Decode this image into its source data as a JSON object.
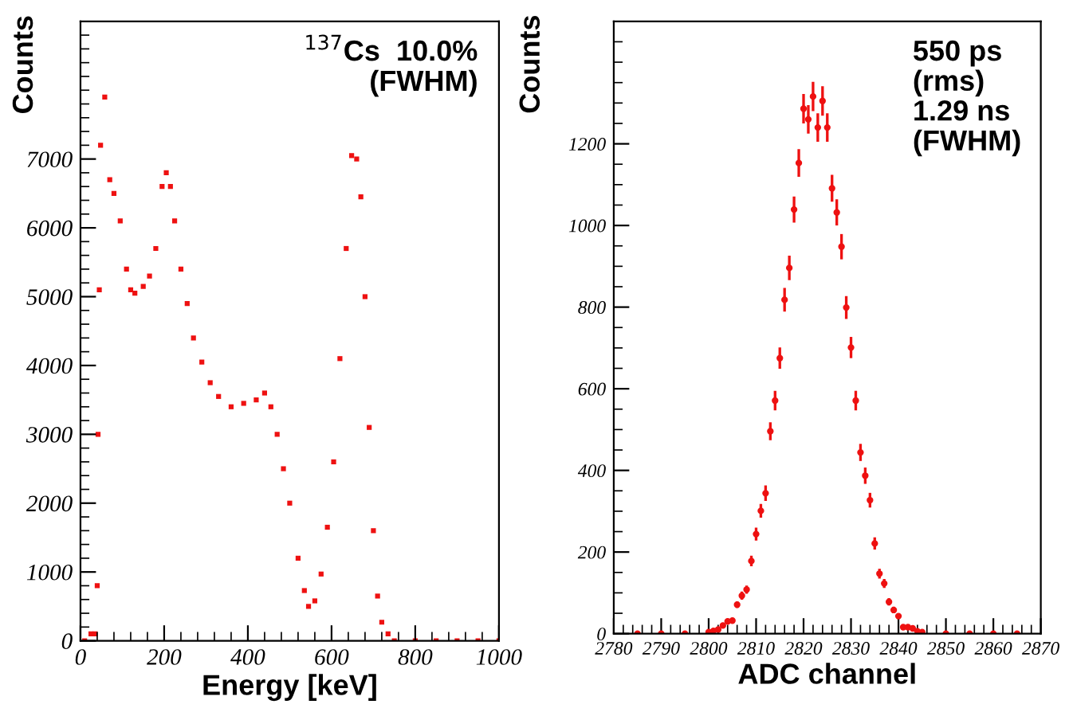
{
  "chart_data": [
    {
      "type": "scatter",
      "xlabel": "Energy [keV]",
      "ylabel": "Counts",
      "annotations": [
        "$^{137}$Cs  10.0%\n(FWHM)"
      ],
      "xlim": [
        0,
        1000
      ],
      "ylim": [
        0,
        9000
      ],
      "xticks": [
        0,
        200,
        400,
        600,
        800,
        1000
      ],
      "yticks": [
        0,
        1000,
        2000,
        3000,
        4000,
        5000,
        6000,
        7000
      ],
      "marker": "square",
      "grid": false,
      "series": [
        {
          "color": "#ee1111",
          "x": [
            10,
            25,
            35,
            40,
            42,
            45,
            48,
            58,
            70,
            80,
            95,
            110,
            120,
            130,
            150,
            165,
            180,
            195,
            205,
            215,
            225,
            240,
            255,
            270,
            290,
            310,
            330,
            360,
            390,
            420,
            440,
            455,
            470,
            485,
            500,
            520,
            535,
            545,
            560,
            575,
            590,
            605,
            620,
            635,
            648,
            660,
            670,
            680,
            690,
            700,
            710,
            720,
            735,
            750,
            800,
            850,
            900,
            950,
            1000
          ],
          "values": [
            0,
            100,
            100,
            800,
            3000,
            5100,
            7200,
            7900,
            6700,
            6500,
            6100,
            5400,
            5100,
            5050,
            5150,
            5300,
            5700,
            6600,
            6800,
            6600,
            6100,
            5400,
            4900,
            4400,
            4050,
            3750,
            3550,
            3400,
            3450,
            3500,
            3600,
            3400,
            3000,
            2500,
            2000,
            1200,
            730,
            500,
            580,
            970,
            1650,
            2600,
            4100,
            5700,
            7050,
            7000,
            6450,
            5000,
            3100,
            1600,
            650,
            270,
            100,
            0,
            0,
            0,
            0,
            0,
            0
          ]
        }
      ]
    },
    {
      "type": "scatter",
      "xlabel": "ADC channel",
      "ylabel": "Counts",
      "annotations": [
        "550 ps\n(rms)\n1.29 ns\n(FWHM)"
      ],
      "xlim": [
        2780,
        2870
      ],
      "ylim": [
        0,
        1500
      ],
      "xticks": [
        2780,
        2790,
        2800,
        2810,
        2820,
        2830,
        2840,
        2850,
        2860,
        2870
      ],
      "yticks": [
        0,
        200,
        400,
        600,
        800,
        1000,
        1200
      ],
      "marker": "circle",
      "grid": false,
      "series": [
        {
          "color": "#ee1111",
          "x": [
            2785,
            2790,
            2795,
            2800,
            2801,
            2802,
            2803,
            2804,
            2805,
            2806,
            2807,
            2808,
            2809,
            2810,
            2811,
            2812,
            2813,
            2814,
            2815,
            2816,
            2817,
            2818,
            2819,
            2820,
            2821,
            2822,
            2823,
            2824,
            2825,
            2826,
            2827,
            2828,
            2829,
            2830,
            2831,
            2832,
            2833,
            2834,
            2835,
            2836,
            2837,
            2838,
            2839,
            2840,
            2841,
            2842,
            2843,
            2844,
            2845,
            2850,
            2855,
            2860,
            2865
          ],
          "values": [
            0,
            0,
            0,
            4,
            7,
            10,
            20,
            30,
            32,
            71,
            93,
            108,
            178,
            244,
            301,
            344,
            496,
            571,
            675,
            818,
            896,
            1039,
            1153,
            1286,
            1260,
            1316,
            1240,
            1305,
            1240,
            1091,
            1032,
            948,
            799,
            701,
            571,
            444,
            387,
            327,
            221,
            147,
            123,
            78,
            58,
            43,
            16,
            16,
            13,
            6,
            4,
            0,
            0,
            0,
            0
          ],
          "errors": [
            null,
            null,
            null,
            2,
            3,
            3,
            4,
            5,
            6,
            8,
            10,
            10,
            13,
            16,
            17,
            19,
            22,
            24,
            26,
            29,
            30,
            32,
            34,
            36,
            35,
            36,
            35,
            36,
            35,
            33,
            32,
            31,
            28,
            26,
            24,
            21,
            20,
            18,
            15,
            12,
            11,
            9,
            8,
            7,
            4,
            4,
            4,
            2,
            2,
            null,
            null,
            null,
            null
          ],
          "xerrors": [
            0.5,
            0.5,
            0.5,
            0.5,
            0.5,
            0.5,
            0.5,
            0.5,
            0.5,
            0.5,
            0.5,
            0.5,
            0.5,
            0.5,
            0.5,
            0.5,
            0.5,
            0.5,
            0.5,
            0.5,
            0.5,
            0.5,
            0.5,
            0.5,
            0.5,
            0.5,
            0.5,
            0.5,
            0.5,
            0.5,
            0.5,
            0.5,
            0.5,
            0.5,
            0.5,
            0.5,
            0.5,
            0.5,
            0.5,
            0.5,
            0.5,
            0.5,
            0.5,
            0.5,
            0.5,
            0.5,
            0.5,
            0.5,
            0.5,
            0.5,
            0.5,
            0.5,
            0.5
          ]
        }
      ]
    }
  ]
}
